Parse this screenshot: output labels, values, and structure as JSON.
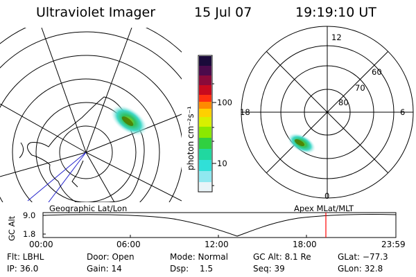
{
  "header": {
    "instrument": "Ultraviolet Imager",
    "date": "15 Jul 07",
    "time": "19:19:10 UT"
  },
  "colorbar": {
    "unit_label": "photon cm⁻²s⁻¹",
    "ticks": [
      "100",
      "10"
    ],
    "colors": [
      "#1a0a3a",
      "#4b0a4b",
      "#8a0a3a",
      "#c80a1e",
      "#ff3010",
      "#ff8a00",
      "#ffd000",
      "#d8f000",
      "#8ae800",
      "#30d040",
      "#20d8a0",
      "#30e0d8",
      "#90e8f0",
      "#e8f4f8"
    ]
  },
  "geo_panel": {
    "label": "Geographic Lat/Lon"
  },
  "polar_panel": {
    "label": "Apex MLat/MLT",
    "mlt_labels": {
      "top": "12",
      "left": "18",
      "right": "6",
      "bottom": "0"
    },
    "lat_labels": [
      "60",
      "70",
      "80"
    ]
  },
  "altitude_plot": {
    "ylabel": "GC Alt",
    "yticks": [
      "9.0",
      "1.8"
    ],
    "xticks": [
      "00:00",
      "06:00",
      "12:00",
      "18:00",
      "23:59"
    ],
    "marker_time": "19:19",
    "marker_color": "#ff0000"
  },
  "footer": {
    "flt": "Flt: LBHL",
    "ip": "IP: 36.0",
    "door": "Door: Open",
    "gain": "Gain: 14",
    "mode": "Mode: Normal",
    "dsp_label": "Dsp:",
    "dsp_value": "1.5",
    "gc_alt": "GC Alt: 8.1 Re",
    "seq": "Seq: 39",
    "glat": "GLat: −77.3",
    "glon": "GLon:  32.8"
  }
}
